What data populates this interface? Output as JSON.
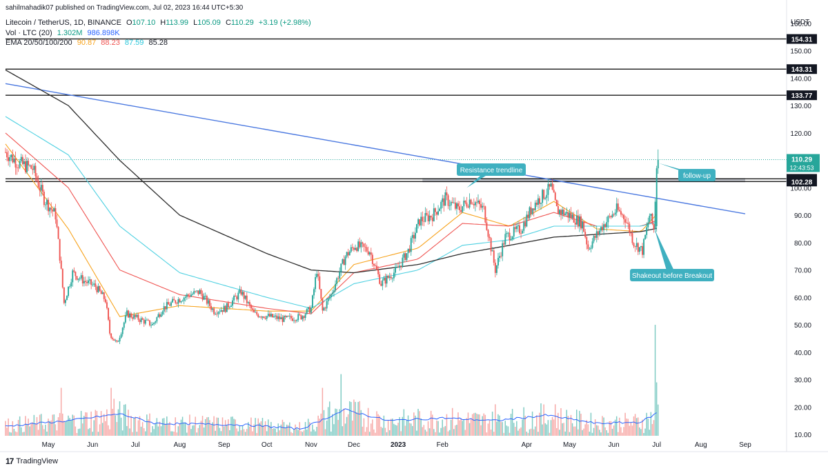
{
  "publisher_line": "sahilmahadik07 published on TradingView.com, Jul 02, 2023 16:44 UTC+5:30",
  "legend": {
    "symbol": "Litecoin / TetherUS, 1D, BINANCE",
    "o_label": "O",
    "o": "107.10",
    "h_label": "H",
    "h": "113.99",
    "l_label": "L",
    "l": "105.09",
    "c_label": "C",
    "c": "110.29",
    "change": "+3.19 (+2.98%)",
    "vol_label": "Vol · LTC (20)",
    "vol_1": "1.302M",
    "vol_2": "986.898K",
    "ema_label": "EMA 20/50/100/200",
    "ema_20": "90.87",
    "ema_50": "88.23",
    "ema_100": "87.59",
    "ema_200": "85.28"
  },
  "currency": "USDT",
  "brand": "TradingView",
  "colors": {
    "up": "#26a69a",
    "down": "#ef5350",
    "ema20": "#f7a21b",
    "ema50": "#ef5350",
    "ema100": "#4dd0e1",
    "ema200": "#2a2a2a",
    "trendline": "#4a78e0",
    "level": "#000000",
    "zone": "#b2b5be",
    "callout": "#3fb0c0",
    "volume_ma": "#2962ff"
  },
  "chart_data": {
    "type": "candlestick",
    "title": "Litecoin / TetherUS, 1D, BINANCE",
    "y_axis": {
      "ticks": [
        10,
        20,
        30,
        40,
        50,
        60,
        70,
        80,
        90,
        100,
        110,
        120,
        130,
        140,
        150,
        160
      ],
      "tick_labels": [
        "10.00",
        "20.00",
        "30.00",
        "40.00",
        "50.00",
        "60.00",
        "70.00",
        "80.00",
        "90.00",
        "100.00",
        "110.00",
        "120.00",
        "130.00",
        "140.00",
        "150.00",
        "160.00"
      ],
      "range": [
        9,
        164
      ],
      "side": "right"
    },
    "x_axis": {
      "labels": [
        "May",
        "Jun",
        "Jul",
        "Aug",
        "Sep",
        "Oct",
        "Nov",
        "Dec",
        "2023",
        "Feb",
        "Apr",
        "May",
        "Jun",
        "Jul",
        "Aug",
        "Sep"
      ],
      "dates": [
        "2022-05-01",
        "2022-06-01",
        "2022-07-01",
        "2022-08-01",
        "2022-09-01",
        "2022-10-01",
        "2022-11-01",
        "2022-12-01",
        "2023-01-01",
        "2023-02-01",
        "2023-04-01",
        "2023-05-01",
        "2023-06-01",
        "2023-07-01",
        "2023-08-01",
        "2023-09-01"
      ],
      "range": [
        "2022-04-01",
        "2023-09-30"
      ],
      "bold_labels": [
        "2023"
      ]
    },
    "price_path": [
      [
        "2022-04-01",
        113
      ],
      [
        "2022-04-10",
        109
      ],
      [
        "2022-04-20",
        107
      ],
      [
        "2022-04-28",
        96
      ],
      [
        "2022-05-06",
        90
      ],
      [
        "2022-05-09",
        75
      ],
      [
        "2022-05-12",
        58
      ],
      [
        "2022-05-18",
        69
      ],
      [
        "2022-05-26",
        66
      ],
      [
        "2022-06-03",
        64
      ],
      [
        "2022-06-10",
        59
      ],
      [
        "2022-06-13",
        47
      ],
      [
        "2022-06-18",
        43
      ],
      [
        "2022-06-25",
        54
      ],
      [
        "2022-07-04",
        52
      ],
      [
        "2022-07-13",
        50
      ],
      [
        "2022-07-20",
        56
      ],
      [
        "2022-07-30",
        59
      ],
      [
        "2022-08-08",
        61
      ],
      [
        "2022-08-15",
        62
      ],
      [
        "2022-08-25",
        55
      ],
      [
        "2022-09-02",
        56
      ],
      [
        "2022-09-13",
        62
      ],
      [
        "2022-09-22",
        54
      ],
      [
        "2022-10-03",
        53
      ],
      [
        "2022-10-13",
        52
      ],
      [
        "2022-10-25",
        53
      ],
      [
        "2022-11-01",
        56
      ],
      [
        "2022-11-05",
        70
      ],
      [
        "2022-11-09",
        55
      ],
      [
        "2022-11-15",
        61
      ],
      [
        "2022-11-25",
        75
      ],
      [
        "2022-12-02",
        79
      ],
      [
        "2022-12-12",
        77
      ],
      [
        "2022-12-20",
        65
      ],
      [
        "2022-12-31",
        70
      ],
      [
        "2023-01-08",
        77
      ],
      [
        "2023-01-16",
        88
      ],
      [
        "2023-01-25",
        90
      ],
      [
        "2023-02-03",
        96
      ],
      [
        "2023-02-12",
        92
      ],
      [
        "2023-02-21",
        96
      ],
      [
        "2023-03-02",
        92
      ],
      [
        "2023-03-10",
        70
      ],
      [
        "2023-03-17",
        82
      ],
      [
        "2023-03-28",
        85
      ],
      [
        "2023-04-06",
        94
      ],
      [
        "2023-04-18",
        100
      ],
      [
        "2023-04-22",
        92
      ],
      [
        "2023-05-01",
        90
      ],
      [
        "2023-05-10",
        87
      ],
      [
        "2023-05-14",
        78
      ],
      [
        "2023-05-24",
        86
      ],
      [
        "2023-06-03",
        92
      ],
      [
        "2023-06-09",
        89
      ],
      [
        "2023-06-15",
        80
      ],
      [
        "2023-06-21",
        77
      ],
      [
        "2023-06-26",
        90
      ],
      [
        "2023-06-29",
        85
      ],
      [
        "2023-07-01",
        107
      ],
      [
        "2023-07-02",
        110.29
      ]
    ],
    "series": [
      {
        "name": "EMA 20",
        "last": 90.87,
        "values": [
          [
            "2022-04-01",
            116
          ],
          [
            "2022-05-15",
            85
          ],
          [
            "2022-06-20",
            53
          ],
          [
            "2022-08-01",
            57
          ],
          [
            "2022-10-01",
            55
          ],
          [
            "2022-11-01",
            55
          ],
          [
            "2022-12-01",
            72
          ],
          [
            "2023-01-15",
            78
          ],
          [
            "2023-02-15",
            91
          ],
          [
            "2023-03-20",
            86
          ],
          [
            "2023-04-20",
            95
          ],
          [
            "2023-05-20",
            85
          ],
          [
            "2023-06-20",
            84
          ],
          [
            "2023-07-02",
            90.87
          ]
        ]
      },
      {
        "name": "EMA 50",
        "last": 88.23,
        "values": [
          [
            "2022-04-01",
            120
          ],
          [
            "2022-05-15",
            100
          ],
          [
            "2022-06-20",
            70
          ],
          [
            "2022-08-01",
            61
          ],
          [
            "2022-10-01",
            56
          ],
          [
            "2022-11-01",
            54
          ],
          [
            "2022-12-01",
            69
          ],
          [
            "2023-01-15",
            74
          ],
          [
            "2023-02-15",
            87
          ],
          [
            "2023-03-20",
            86
          ],
          [
            "2023-04-20",
            91
          ],
          [
            "2023-05-20",
            86
          ],
          [
            "2023-06-20",
            86
          ],
          [
            "2023-07-02",
            88.23
          ]
        ]
      },
      {
        "name": "EMA 100",
        "last": 87.59,
        "values": [
          [
            "2022-04-01",
            126
          ],
          [
            "2022-05-15",
            112
          ],
          [
            "2022-06-20",
            86
          ],
          [
            "2022-08-01",
            69
          ],
          [
            "2022-10-01",
            60
          ],
          [
            "2022-11-01",
            56
          ],
          [
            "2022-12-01",
            65
          ],
          [
            "2023-01-15",
            70
          ],
          [
            "2023-02-15",
            79
          ],
          [
            "2023-03-20",
            81
          ],
          [
            "2023-04-20",
            86
          ],
          [
            "2023-05-20",
            86
          ],
          [
            "2023-06-20",
            86
          ],
          [
            "2023-07-02",
            87.59
          ]
        ]
      },
      {
        "name": "EMA 200",
        "last": 85.28,
        "values": [
          [
            "2022-04-01",
            143
          ],
          [
            "2022-05-15",
            130
          ],
          [
            "2022-06-20",
            110
          ],
          [
            "2022-08-01",
            90
          ],
          [
            "2022-10-01",
            76
          ],
          [
            "2022-11-01",
            70
          ],
          [
            "2022-12-01",
            69
          ],
          [
            "2023-01-15",
            72
          ],
          [
            "2023-02-15",
            76
          ],
          [
            "2023-03-20",
            79
          ],
          [
            "2023-04-20",
            82
          ],
          [
            "2023-05-20",
            83
          ],
          [
            "2023-06-20",
            84
          ],
          [
            "2023-07-02",
            85.28
          ]
        ]
      }
    ],
    "volume": {
      "label": "Vol · LTC (20)",
      "last": "1.302M",
      "ma": "986.898K",
      "range": [
        9,
        55
      ],
      "spikes": [
        [
          "2022-05-10",
          27
        ],
        [
          "2022-06-14",
          27
        ],
        [
          "2022-06-16",
          23
        ],
        [
          "2022-11-09",
          27
        ],
        [
          "2022-11-22",
          32
        ],
        [
          "2022-11-14",
          22
        ],
        [
          "2023-03-10",
          21
        ],
        [
          "2023-04-21",
          21
        ],
        [
          "2023-06-30",
          50
        ],
        [
          "2023-07-01",
          29
        ]
      ],
      "ma_values": [
        [
          "2022-04-01",
          13
        ],
        [
          "2022-05-15",
          15
        ],
        [
          "2022-06-20",
          17.5
        ],
        [
          "2022-07-15",
          14
        ],
        [
          "2022-09-15",
          13.5
        ],
        [
          "2022-10-25",
          12
        ],
        [
          "2022-11-25",
          19
        ],
        [
          "2022-12-25",
          15
        ],
        [
          "2023-02-01",
          16
        ],
        [
          "2023-03-10",
          15
        ],
        [
          "2023-04-15",
          17
        ],
        [
          "2023-05-20",
          14
        ],
        [
          "2023-06-20",
          14.5
        ],
        [
          "2023-07-02",
          18
        ]
      ]
    },
    "horizontal_levels": [
      {
        "label": "154.31",
        "value": 154.31
      },
      {
        "label": "143.31",
        "value": 143.31
      },
      {
        "label": "133.77",
        "value": 133.77
      },
      {
        "label": "103.26",
        "value": 103.26
      },
      {
        "label": "102.28",
        "value": 102.28
      }
    ],
    "last_price": {
      "value": 110.29,
      "label": "110.29",
      "countdown": "12:43:53"
    },
    "resistance_zone": {
      "top": 103.26,
      "bottom": 102.28,
      "start": "2023-01-18",
      "end": "2023-09-01"
    },
    "trendline": {
      "start": [
        "2022-04-01",
        138
      ],
      "end": [
        "2023-09-01",
        90.5
      ]
    },
    "annotations": [
      {
        "text": "Resistance trendline",
        "point": [
          "2023-02-18",
          100
        ]
      },
      {
        "text": "follow-up",
        "point": [
          "2023-07-01",
          109
        ]
      },
      {
        "text": "Shakeout before Breakout",
        "point": [
          "2023-06-29",
          85
        ]
      }
    ]
  }
}
